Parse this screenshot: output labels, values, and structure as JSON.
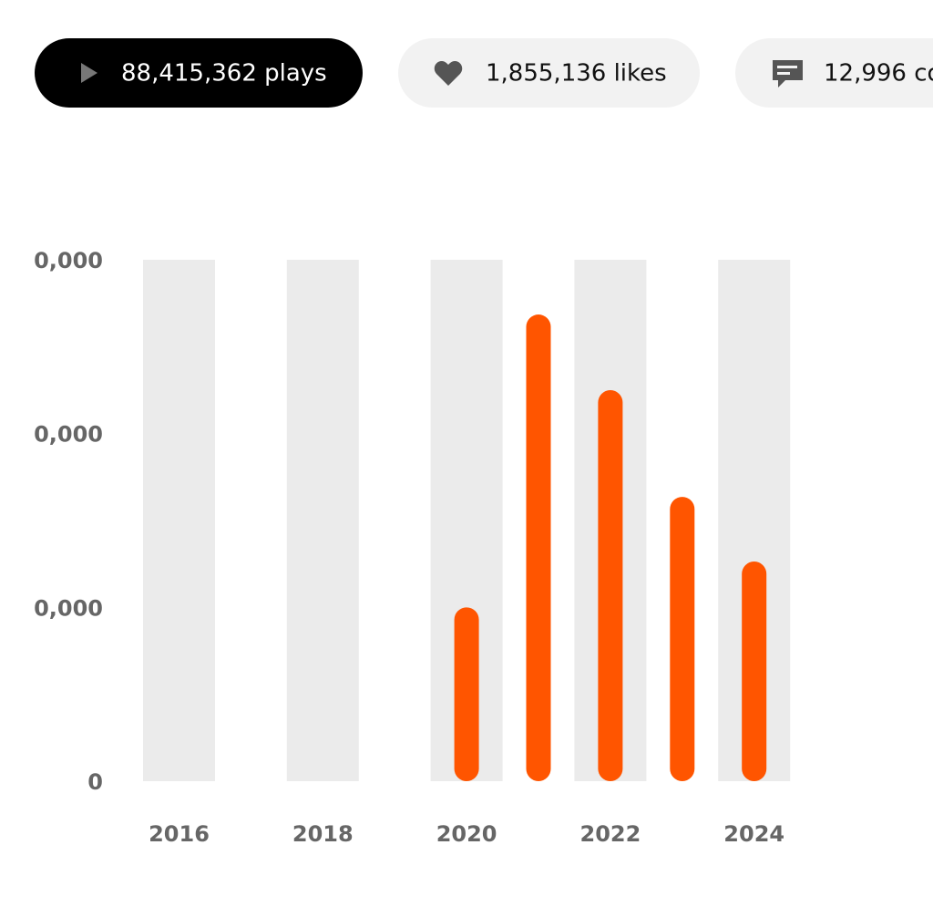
{
  "stats": {
    "plays": "88,415,362 plays",
    "likes": "1,855,136 likes",
    "comments": "12,996 co"
  },
  "chart_data": {
    "type": "bar",
    "categories": [
      "2016",
      null,
      "2018",
      null,
      "2020",
      null,
      "2022",
      null,
      "2024"
    ],
    "values": [
      null,
      null,
      null,
      null,
      10000000,
      26850000,
      22500000,
      16360000,
      12640000
    ],
    "color": "#ff5500",
    "band_color": "#ebebeb",
    "ylim": [
      0,
      30000000
    ],
    "yticks": [
      0,
      {
        "value": 10000000,
        "label": "0,000"
      },
      {
        "value": 20000000,
        "label": "0,000"
      },
      {
        "value": 30000000,
        "label": "0,000"
      }
    ]
  }
}
